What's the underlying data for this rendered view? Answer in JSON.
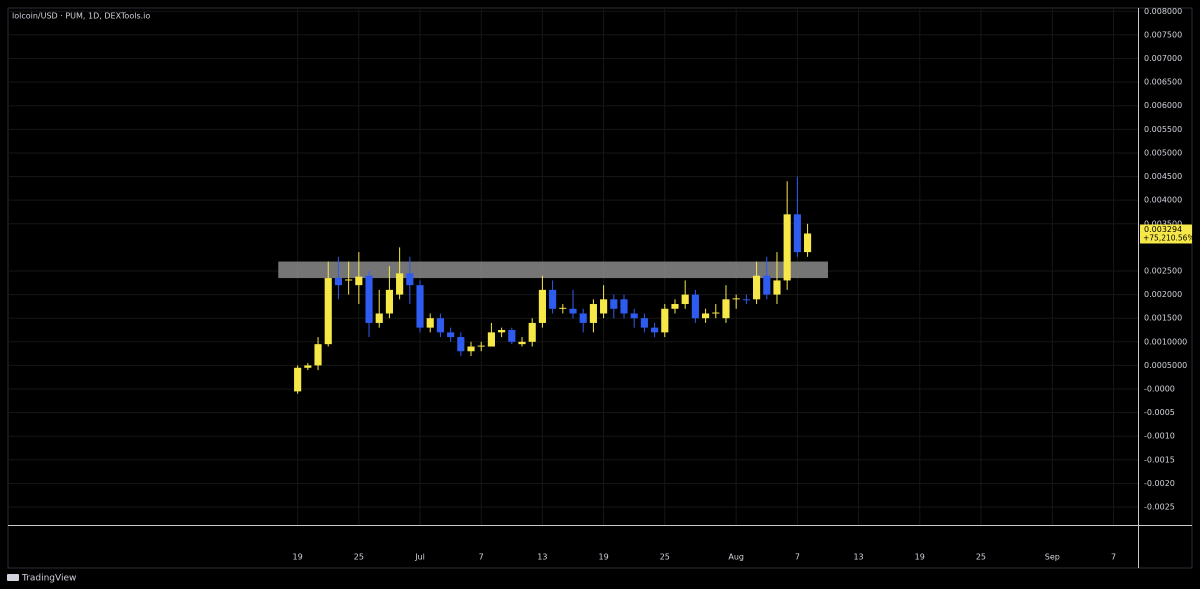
{
  "chart_data": {
    "type": "candlestick",
    "title": "lolcoin/USD · PUM, 1D, DEXTools.io",
    "footer": "TradingView",
    "up_color": "#f7e84a",
    "down_color": "#2f5cf0",
    "x": [
      0,
      1,
      2,
      3,
      4,
      5,
      6,
      7,
      8,
      9,
      10,
      11,
      12,
      13,
      14,
      15,
      16,
      17,
      18,
      19,
      20,
      21,
      22,
      23,
      24,
      25,
      26,
      27,
      28,
      29,
      30,
      31,
      32,
      33,
      34,
      35,
      36,
      37,
      38,
      39,
      40,
      41,
      42,
      43,
      44,
      45,
      46,
      47,
      48,
      49,
      50
    ],
    "open": [
      -5e-05,
      0.00045,
      0.0005,
      0.00095,
      0.00235,
      0.0023,
      0.0022,
      0.0024,
      0.0014,
      0.0016,
      0.002,
      0.00245,
      0.0022,
      0.0013,
      0.0015,
      0.0012,
      0.0011,
      0.0008,
      0.0009,
      0.0009,
      0.0012,
      0.00125,
      0.00095,
      0.001,
      0.0014,
      0.0021,
      0.0017,
      0.0017,
      0.0016,
      0.0014,
      0.0016,
      0.0019,
      0.0019,
      0.0016,
      0.0015,
      0.0013,
      0.0012,
      0.0017,
      0.0018,
      0.002,
      0.0015,
      0.0016,
      0.0015,
      0.0019,
      0.0019,
      0.0019,
      0.0024,
      0.002,
      0.0023,
      0.0037,
      0.0029
    ],
    "high": [
      0.0005,
      0.00055,
      0.0011,
      0.0027,
      0.0028,
      0.0027,
      0.0029,
      0.0025,
      0.0021,
      0.0026,
      0.003,
      0.0028,
      0.0023,
      0.0016,
      0.0016,
      0.0013,
      0.0012,
      0.001,
      0.001,
      0.0014,
      0.0013,
      0.0013,
      0.0011,
      0.0015,
      0.0024,
      0.0023,
      0.0018,
      0.0021,
      0.0017,
      0.0019,
      0.0022,
      0.002,
      0.002,
      0.0017,
      0.0016,
      0.0014,
      0.0018,
      0.0019,
      0.0023,
      0.0021,
      0.0017,
      0.0018,
      0.0022,
      0.002,
      0.002,
      0.0027,
      0.0028,
      0.0029,
      0.0044,
      0.0045,
      0.0035
    ],
    "low": [
      -0.0001,
      0.0004,
      0.0004,
      0.0009,
      0.0019,
      0.002,
      0.0018,
      0.0011,
      0.0013,
      0.0015,
      0.0019,
      0.0018,
      0.0012,
      0.0012,
      0.0011,
      0.001,
      0.0007,
      0.0007,
      0.0008,
      0.0009,
      0.0011,
      0.00095,
      0.0009,
      0.0009,
      0.0013,
      0.0016,
      0.0016,
      0.0015,
      0.0012,
      0.0012,
      0.0015,
      0.0015,
      0.0015,
      0.0013,
      0.0012,
      0.0011,
      0.0011,
      0.0016,
      0.0017,
      0.0014,
      0.0014,
      0.0015,
      0.0014,
      0.0017,
      0.0018,
      0.0018,
      0.0019,
      0.0018,
      0.0021,
      0.0028,
      0.0028
    ],
    "close": [
      0.00045,
      0.0005,
      0.00095,
      0.00235,
      0.0022,
      0.00232,
      0.00238,
      0.0014,
      0.0016,
      0.0021,
      0.00245,
      0.0022,
      0.0013,
      0.0015,
      0.0012,
      0.0011,
      0.0008,
      0.0009,
      0.00092,
      0.0012,
      0.00125,
      0.001,
      0.001,
      0.0014,
      0.0021,
      0.0017,
      0.00172,
      0.0016,
      0.0014,
      0.0018,
      0.0019,
      0.0017,
      0.0016,
      0.0015,
      0.0013,
      0.0012,
      0.0017,
      0.0018,
      0.002,
      0.0015,
      0.0016,
      0.00162,
      0.0019,
      0.00192,
      0.00188,
      0.0024,
      0.002,
      0.0023,
      0.0037,
      0.0029,
      0.003294
    ],
    "zone": {
      "low": 0.00235,
      "high": 0.0027,
      "start": -1.9,
      "end": 52
    },
    "last_price": 0.003294,
    "last_change": "+75,210.56%",
    "xlim": [
      -28.4,
      82.4
    ],
    "xticks": [
      {
        "value": 0,
        "label": "19"
      },
      {
        "value": 6,
        "label": "25"
      },
      {
        "value": 12,
        "label": "Jul"
      },
      {
        "value": 18,
        "label": "7"
      },
      {
        "value": 24,
        "label": "13"
      },
      {
        "value": 30,
        "label": "19"
      },
      {
        "value": 36,
        "label": "25"
      },
      {
        "value": 43,
        "label": "Aug"
      },
      {
        "value": 49,
        "label": "7"
      },
      {
        "value": 55,
        "label": "13"
      },
      {
        "value": 61,
        "label": "19"
      },
      {
        "value": 67,
        "label": "25"
      },
      {
        "value": 74,
        "label": "Sep"
      },
      {
        "value": 80,
        "label": "7"
      }
    ],
    "ylim": [
      -0.00288,
      0.00807
    ],
    "yticks": [
      {
        "value": 0.008,
        "label": "0.008000"
      },
      {
        "value": 0.0075,
        "label": "0.007500"
      },
      {
        "value": 0.007,
        "label": "0.007000"
      },
      {
        "value": 0.0065,
        "label": "0.006500"
      },
      {
        "value": 0.006,
        "label": "0.006000"
      },
      {
        "value": 0.0055,
        "label": "0.005500"
      },
      {
        "value": 0.005,
        "label": "0.005000"
      },
      {
        "value": 0.0045,
        "label": "0.004500"
      },
      {
        "value": 0.004,
        "label": "0.004000"
      },
      {
        "value": 0.0035,
        "label": "0.003500"
      },
      {
        "value": 0.0025,
        "label": "0.002500"
      },
      {
        "value": 0.002,
        "label": "0.002000"
      },
      {
        "value": 0.0015,
        "label": "0.001500"
      },
      {
        "value": 0.001,
        "label": "0.0010000"
      },
      {
        "value": 0.0005,
        "label": "0.0005000"
      },
      {
        "value": 0,
        "label": "-0.0000"
      },
      {
        "value": -0.0005,
        "label": "-0.0005"
      },
      {
        "value": -0.001,
        "label": "-0.0010"
      },
      {
        "value": -0.0015,
        "label": "-0.0015"
      },
      {
        "value": -0.002,
        "label": "-0.0020"
      },
      {
        "value": -0.0025,
        "label": "-0.0025"
      }
    ],
    "grid": true
  }
}
